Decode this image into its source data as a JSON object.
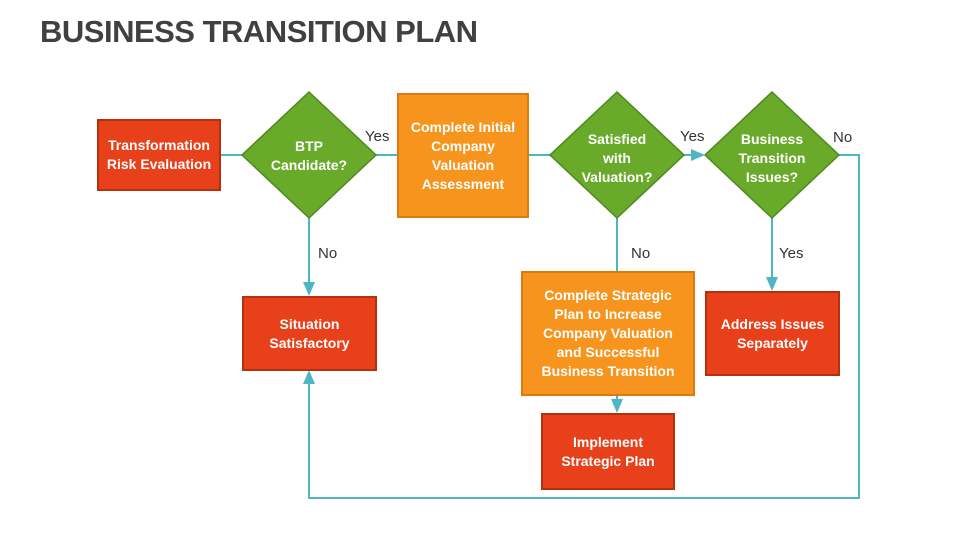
{
  "title": "BUSINESS TRANSITION PLAN",
  "colors": {
    "red": "#e8401a",
    "orange": "#f7941d",
    "green": "#6aaa2a",
    "connector": "#4db6c2"
  },
  "nodes": {
    "risk_eval": "Transformation\nRisk Evaluation",
    "btp_candidate": "BTP\nCandidate?",
    "initial_valuation": "Complete Initial\nCompany\nValuation\nAssessment",
    "satisfied": "Satisfied\nwith\nValuation?",
    "transition_issues": "Business\nTransition\nIssues?",
    "situation": "Situation\nSatisfactory",
    "strategic_plan": "Complete Strategic\nPlan to Increase\nCompany Valuation\nand Successful\nBusiness Transition",
    "implement": "Implement\nStrategic Plan",
    "address": "Address Issues\nSeparately"
  },
  "labels": {
    "yes1": "Yes",
    "yes2": "Yes",
    "no3": "No",
    "no1": "No",
    "no2": "No",
    "yes3": "Yes"
  }
}
